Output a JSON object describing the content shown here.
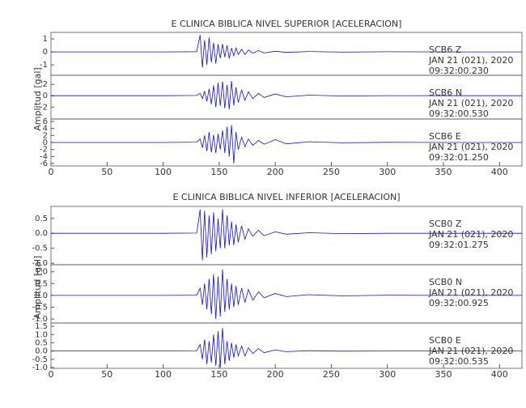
{
  "chart_data": [
    {
      "type": "line",
      "title": "E CLINICA BIBLICA NIVEL SUPERIOR [ACELERACION]",
      "ylabel": "Amplitud [gal]",
      "xlim": [
        0,
        420
      ],
      "xticks": [
        0,
        50,
        100,
        150,
        200,
        250,
        300,
        350,
        400
      ],
      "panels": [
        {
          "color": "#1010d0",
          "ylim": [
            -1.8,
            1.5
          ],
          "yticks": [
            -1,
            0,
            1
          ],
          "label": [
            "SCB6 Z",
            "JAN 21 (021), 2020",
            "09:32:00.230"
          ],
          "x": [
            0,
            50,
            100,
            130,
            133,
            135,
            137,
            139,
            141,
            143,
            145,
            147,
            149,
            151,
            153,
            155,
            157,
            159,
            161,
            163,
            165,
            167,
            170,
            173,
            176,
            180,
            185,
            190,
            200,
            210,
            230,
            260,
            300,
            350,
            420
          ],
          "values": [
            0,
            0,
            0,
            0.02,
            1.3,
            -1.2,
            0.9,
            -1.0,
            1.1,
            -0.8,
            0.7,
            -0.9,
            0.6,
            -0.5,
            0.6,
            -0.4,
            0.5,
            -0.5,
            0.3,
            -0.3,
            0.3,
            -0.2,
            0.2,
            -0.2,
            0.15,
            -0.1,
            0.1,
            -0.08,
            0.05,
            -0.04,
            0.03,
            -0.02,
            0.01,
            0,
            0
          ]
        },
        {
          "color": "#1010d0",
          "ylim": [
            -4.1,
            3.6
          ],
          "yticks": [
            -2,
            0,
            2
          ],
          "label": [
            "SCB6 N",
            "JAN 21 (021), 2020",
            "09:32:00.530"
          ],
          "x": [
            0,
            50,
            100,
            130,
            133,
            135,
            137,
            139,
            141,
            143,
            145,
            147,
            149,
            151,
            153,
            155,
            157,
            159,
            161,
            163,
            165,
            167,
            170,
            173,
            176,
            180,
            185,
            190,
            200,
            210,
            230,
            260,
            300,
            350,
            420
          ],
          "values": [
            0,
            0,
            0,
            0.05,
            0.4,
            -0.5,
            0.8,
            -1.0,
            1.2,
            -1.5,
            1.8,
            -2.0,
            2.3,
            -1.8,
            2.5,
            -2.2,
            1.9,
            -2.4,
            2.6,
            -1.7,
            1.5,
            -1.2,
            1.0,
            -0.8,
            0.7,
            -0.5,
            0.4,
            -0.3,
            0.3,
            -0.2,
            0.1,
            -0.05,
            0.02,
            0,
            0
          ]
        },
        {
          "color": "#1010d0",
          "ylim": [
            -6.7,
            6.7
          ],
          "yticks": [
            -6,
            -4,
            -2,
            0,
            2,
            4,
            6
          ],
          "label": [
            "SCB6 E",
            "JAN 21 (021), 2020",
            "09:32:01.250"
          ],
          "x": [
            0,
            50,
            100,
            130,
            133,
            135,
            137,
            139,
            141,
            143,
            145,
            147,
            149,
            151,
            153,
            155,
            157,
            159,
            161,
            163,
            165,
            167,
            170,
            173,
            176,
            180,
            185,
            190,
            200,
            210,
            230,
            260,
            300,
            350,
            420
          ],
          "values": [
            0,
            0,
            0,
            0.1,
            1.0,
            -1.5,
            2.0,
            -2.5,
            3.0,
            -2.8,
            2.2,
            -3.0,
            2.5,
            -2.0,
            3.5,
            -3.0,
            4.5,
            -4.0,
            5.0,
            -6.0,
            3.0,
            -2.0,
            1.5,
            -1.2,
            1.0,
            -0.8,
            0.6,
            -0.5,
            0.8,
            -0.4,
            0.2,
            -0.1,
            0.05,
            0,
            0
          ]
        }
      ]
    },
    {
      "type": "line",
      "title": "E CLINICA BIBLICA NIVEL INFERIOR [ACELERACION]",
      "ylabel": "Amplitud [gal]",
      "xlim": [
        0,
        420
      ],
      "xticks": [
        0,
        50,
        100,
        150,
        200,
        250,
        300,
        350,
        400
      ],
      "panels": [
        {
          "color": "#1010d0",
          "ylim": [
            -1.05,
            0.9
          ],
          "yticks": [
            {
              "value": -1,
              "label": "-1.0"
            },
            -0.5,
            {
              "value": 0,
              "label": "0.0"
            },
            0.5
          ],
          "label": [
            "SCB0 Z",
            "JAN 21 (021), 2020",
            "09:32:01.275"
          ],
          "x": [
            0,
            50,
            100,
            130,
            133,
            135,
            137,
            139,
            141,
            143,
            145,
            147,
            149,
            151,
            153,
            155,
            157,
            159,
            161,
            163,
            165,
            167,
            170,
            173,
            176,
            180,
            185,
            190,
            200,
            210,
            230,
            260,
            300,
            350,
            420
          ],
          "values": [
            0,
            0,
            0,
            0.01,
            0.8,
            -0.9,
            0.75,
            -0.8,
            0.6,
            -0.7,
            0.7,
            -0.6,
            0.5,
            -0.5,
            0.8,
            -0.5,
            0.6,
            -0.4,
            0.4,
            -0.4,
            0.3,
            -0.3,
            0.25,
            -0.2,
            0.15,
            -0.1,
            0.1,
            -0.08,
            0.05,
            -0.03,
            0.02,
            -0.01,
            0,
            0,
            0
          ]
        },
        {
          "color": "#1010d0",
          "ylim": [
            -1.17,
            1.3
          ],
          "yticks": [
            {
              "value": -1,
              "label": "-1.0"
            },
            -0.5,
            {
              "value": 0,
              "label": "0.0"
            },
            0.5,
            {
              "value": 1,
              "label": "1.0"
            }
          ],
          "label": [
            "SCB0 N",
            "JAN 21 (021), 2020",
            "09:32:00.925"
          ],
          "x": [
            0,
            50,
            100,
            130,
            133,
            135,
            137,
            139,
            141,
            143,
            145,
            147,
            149,
            151,
            153,
            155,
            157,
            159,
            161,
            163,
            165,
            167,
            170,
            173,
            176,
            180,
            185,
            190,
            200,
            210,
            230,
            260,
            300,
            350,
            420
          ],
          "values": [
            0,
            0,
            0,
            0.01,
            0.3,
            -0.4,
            0.5,
            -0.6,
            0.7,
            -0.8,
            0.9,
            -1.0,
            0.8,
            -0.9,
            1.1,
            -0.7,
            0.7,
            -0.6,
            0.5,
            -0.5,
            0.4,
            -0.4,
            0.3,
            -0.3,
            0.25,
            -0.2,
            0.15,
            -0.1,
            0.08,
            -0.05,
            0.03,
            -0.02,
            0.01,
            0,
            0
          ]
        },
        {
          "color": "#1010d0",
          "ylim": [
            -1.05,
            1.7
          ],
          "yticks": [
            {
              "value": -1,
              "label": "-1.0"
            },
            -0.5,
            {
              "value": 0,
              "label": "0.0"
            },
            0.5,
            {
              "value": 1,
              "label": "1.0"
            },
            1.5
          ],
          "label": [
            "SCB0 E",
            "JAN 21 (021), 2020",
            "09:32:00.535"
          ],
          "x": [
            0,
            50,
            100,
            130,
            133,
            135,
            137,
            139,
            141,
            143,
            145,
            147,
            149,
            151,
            153,
            155,
            157,
            159,
            161,
            163,
            165,
            167,
            170,
            173,
            176,
            180,
            185,
            190,
            200,
            210,
            230,
            260,
            300,
            350,
            420
          ],
          "values": [
            0,
            0,
            0,
            0.01,
            0.4,
            -0.5,
            0.7,
            -0.8,
            0.6,
            -0.7,
            1.0,
            -0.9,
            1.2,
            -1.0,
            1.4,
            -0.8,
            0.6,
            -0.6,
            0.5,
            -0.4,
            0.4,
            -0.3,
            0.3,
            -0.3,
            0.2,
            -0.15,
            0.15,
            -0.1,
            0.06,
            -0.04,
            0.02,
            -0.01,
            0,
            0,
            0
          ]
        }
      ]
    }
  ]
}
